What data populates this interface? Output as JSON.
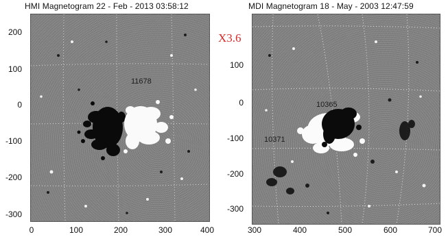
{
  "left_panel": {
    "title": "HMI Magnetogram 22 - Feb - 2013 03:58:12",
    "y_ticks": [
      "200",
      "100",
      "0",
      "-100",
      "-200",
      "-300"
    ],
    "x_ticks": [
      "0",
      "100",
      "200",
      "300",
      "400"
    ],
    "region_label": "11678"
  },
  "right_panel": {
    "title": "MDI Magnetogram 18 - May - 2003 12:47:59",
    "flare_label": "X3.6",
    "y_ticks": [
      "100",
      "0",
      "-100",
      "-200",
      "-300"
    ],
    "x_ticks": [
      "300",
      "400",
      "500",
      "600",
      "700"
    ],
    "region_label_main": "10365",
    "region_label_secondary": "10371"
  },
  "colors": {
    "background_gray": "#808080",
    "flare_label": "#d42a2a",
    "positive_polarity": "#ffffff",
    "negative_polarity": "#000000"
  }
}
